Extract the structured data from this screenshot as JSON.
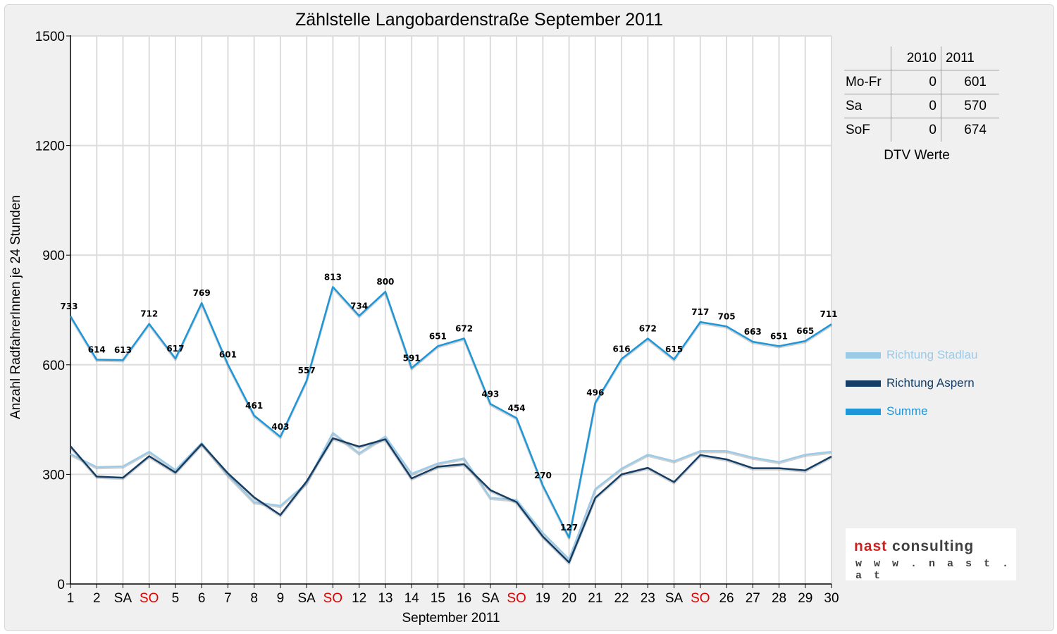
{
  "chart_data": {
    "type": "line",
    "title": "Zählstelle Langobardenstraße September 2011",
    "xlabel": "September 2011",
    "ylabel": "Anzahl RadfahrerInnen je 24 Stunden",
    "ylim": [
      0,
      1500
    ],
    "yticks": [
      0,
      300,
      600,
      900,
      1200,
      1500
    ],
    "categories": [
      "1",
      "2",
      "SA",
      "SO",
      "5",
      "6",
      "7",
      "8",
      "9",
      "SA",
      "SO",
      "12",
      "13",
      "14",
      "15",
      "16",
      "SA",
      "SO",
      "19",
      "20",
      "21",
      "22",
      "23",
      "SA",
      "SO",
      "26",
      "27",
      "28",
      "29",
      "30"
    ],
    "weekend_labels": [
      "SO"
    ],
    "weekend_color": "#e00000",
    "grid": true,
    "legend_position": "right",
    "series": [
      {
        "name": "Richtung Stadlau",
        "color": "#9ccbe8",
        "values": [
          356,
          320,
          322,
          362,
          312,
          386,
          298,
          224,
          214,
          276,
          414,
          358,
          404,
          302,
          330,
          344,
          236,
          230,
          140,
          68,
          260,
          316,
          354,
          336,
          364,
          364,
          346,
          334,
          354,
          362
        ]
      },
      {
        "name": "Richtung Aspern",
        "color": "#153e66",
        "values": [
          377,
          294,
          291,
          350,
          305,
          383,
          303,
          237,
          189,
          281,
          399,
          376,
          396,
          289,
          321,
          328,
          257,
          224,
          130,
          59,
          236,
          300,
          318,
          279,
          353,
          341,
          317,
          317,
          311,
          349
        ]
      },
      {
        "name": "Summe",
        "color": "#1e96d8",
        "values": [
          733,
          614,
          613,
          712,
          617,
          769,
          601,
          461,
          403,
          557,
          813,
          734,
          800,
          591,
          651,
          672,
          493,
          454,
          270,
          127,
          496,
          616,
          672,
          615,
          717,
          705,
          663,
          651,
          665,
          711
        ],
        "labels": [
          "733",
          "614",
          "613",
          "712",
          "617",
          "769",
          "601",
          "461",
          "403",
          "557",
          "813",
          "734",
          "800",
          "591",
          "651",
          "672",
          "493",
          "454",
          "270",
          "127",
          "496",
          "616",
          "672",
          "615",
          "717",
          "705",
          "663",
          "651",
          "665",
          "711"
        ]
      }
    ]
  },
  "dtv": {
    "headers": [
      "",
      "2010",
      "2011"
    ],
    "rows": [
      {
        "label": "Mo-Fr",
        "y2010": "0",
        "y2011": "601"
      },
      {
        "label": "Sa",
        "y2010": "0",
        "y2011": "570"
      },
      {
        "label": "SoF",
        "y2010": "0",
        "y2011": "674"
      }
    ],
    "caption": "DTV Werte"
  },
  "logo": {
    "part1": "nast",
    "part2": "consulting",
    "url": "w w w . n a s t . a t",
    "color_red": "#d02020",
    "color_dark": "#404040"
  }
}
